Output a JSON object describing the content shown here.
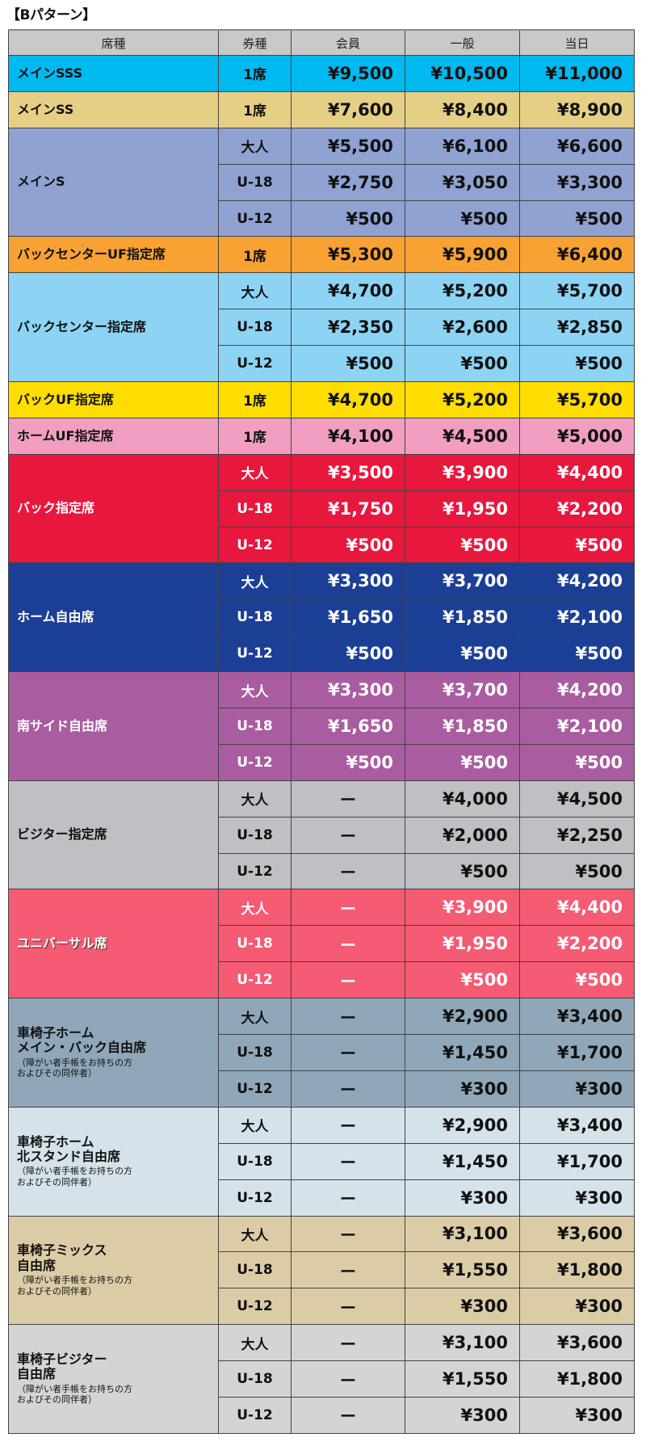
{
  "title": "【Bパターン】",
  "headers": [
    "席種",
    "券種",
    "会員",
    "一般",
    "当日"
  ],
  "groups": [
    {
      "seat": "メインSSS",
      "color": "#00b9ef",
      "text": "#111111",
      "rows": [
        [
          "1席",
          "¥9,500",
          "¥10,500",
          "¥11,000"
        ]
      ]
    },
    {
      "seat": "メインSS",
      "color": "#e5cf84",
      "text": "#111111",
      "rows": [
        [
          "1席",
          "¥7,600",
          "¥8,400",
          "¥8,900"
        ]
      ]
    },
    {
      "seat": "メインS",
      "color": "#8fa2d2",
      "text": "#111111",
      "rows": [
        [
          "大人",
          "¥5,500",
          "¥6,100",
          "¥6,600"
        ],
        [
          "U-18",
          "¥2,750",
          "¥3,050",
          "¥3,300"
        ],
        [
          "U-12",
          "¥500",
          "¥500",
          "¥500"
        ]
      ]
    },
    {
      "seat": "バックセンターUF指定席",
      "color": "#f7a233",
      "text": "#111111",
      "rows": [
        [
          "1席",
          "¥5,300",
          "¥5,900",
          "¥6,400"
        ]
      ]
    },
    {
      "seat": "バックセンター指定席",
      "color": "#8dd4f4",
      "text": "#111111",
      "rows": [
        [
          "大人",
          "¥4,700",
          "¥5,200",
          "¥5,700"
        ],
        [
          "U-18",
          "¥2,350",
          "¥2,600",
          "¥2,850"
        ],
        [
          "U-12",
          "¥500",
          "¥500",
          "¥500"
        ]
      ]
    },
    {
      "seat": "バックUF指定席",
      "color": "#ffdd00",
      "text": "#111111",
      "rows": [
        [
          "1席",
          "¥4,700",
          "¥5,200",
          "¥5,700"
        ]
      ]
    },
    {
      "seat": "ホームUF指定席",
      "color": "#f19ec2",
      "text": "#111111",
      "rows": [
        [
          "1席",
          "¥4,100",
          "¥4,500",
          "¥5,000"
        ]
      ]
    },
    {
      "seat": "バック指定席",
      "color": "#e8173d",
      "text": "#ffffff",
      "rows": [
        [
          "大人",
          "¥3,500",
          "¥3,900",
          "¥4,400"
        ],
        [
          "U-18",
          "¥1,750",
          "¥1,950",
          "¥2,200"
        ],
        [
          "U-12",
          "¥500",
          "¥500",
          "¥500"
        ]
      ]
    },
    {
      "seat": "ホーム自由席",
      "color": "#1c3f96",
      "text": "#ffffff",
      "rows": [
        [
          "大人",
          "¥3,300",
          "¥3,700",
          "¥4,200"
        ],
        [
          "U-18",
          "¥1,650",
          "¥1,850",
          "¥2,100"
        ],
        [
          "U-12",
          "¥500",
          "¥500",
          "¥500"
        ]
      ]
    },
    {
      "seat": "南サイド自由席",
      "color": "#a95da0",
      "text": "#ffffff",
      "rows": [
        [
          "大人",
          "¥3,300",
          "¥3,700",
          "¥4,200"
        ],
        [
          "U-18",
          "¥1,650",
          "¥1,850",
          "¥2,100"
        ],
        [
          "U-12",
          "¥500",
          "¥500",
          "¥500"
        ]
      ]
    },
    {
      "seat": "ビジター指定席",
      "color": "#bfc0c4",
      "text": "#111111",
      "rows": [
        [
          "大人",
          "ー",
          "¥4,000",
          "¥4,500"
        ],
        [
          "U-18",
          "ー",
          "¥2,000",
          "¥2,250"
        ],
        [
          "U-12",
          "ー",
          "¥500",
          "¥500"
        ]
      ]
    },
    {
      "seat": "ユニバーサル席",
      "color": "#f55b72",
      "text": "#ffffff",
      "white_cells": true,
      "shadow": true,
      "rows": [
        [
          "大人",
          "ー",
          "¥3,900",
          "¥4,400"
        ],
        [
          "U-18",
          "ー",
          "¥1,950",
          "¥2,200"
        ],
        [
          "U-12",
          "ー",
          "¥500",
          "¥500"
        ]
      ]
    },
    {
      "seat": "車椅子ホーム\nメイン・バック自由席",
      "note": "（障がい者手帳をお持ちの方\nおよびその同伴者）",
      "color": "#8fa7b8",
      "text": "#111111",
      "white_cells": true,
      "rows": [
        [
          "大人",
          "ー",
          "¥2,900",
          "¥3,400"
        ],
        [
          "U-18",
          "ー",
          "¥1,450",
          "¥1,700"
        ],
        [
          "U-12",
          "ー",
          "¥300",
          "¥300"
        ]
      ]
    },
    {
      "seat": "車椅子ホーム\n北スタンド自由席",
      "note": "（障がい者手帳をお持ちの方\nおよびその同伴者）",
      "color": "#d5e2ea",
      "text": "#111111",
      "white_cells": true,
      "rows": [
        [
          "大人",
          "ー",
          "¥2,900",
          "¥3,400"
        ],
        [
          "U-18",
          "ー",
          "¥1,450",
          "¥1,700"
        ],
        [
          "U-12",
          "ー",
          "¥300",
          "¥300"
        ]
      ]
    },
    {
      "seat": "車椅子ミックス\n自由席",
      "note": "（障がい者手帳をお持ちの方\nおよびその同伴者）",
      "color": "#dccca6",
      "text": "#111111",
      "white_cells": true,
      "rows": [
        [
          "大人",
          "ー",
          "¥3,100",
          "¥3,600"
        ],
        [
          "U-18",
          "ー",
          "¥1,550",
          "¥1,800"
        ],
        [
          "U-12",
          "ー",
          "¥300",
          "¥300"
        ]
      ]
    },
    {
      "seat": "車椅子ビジター\n自由席",
      "note": "（障がい者手帳をお持ちの方\nおよびその同伴者）",
      "color": "#d4d4d6",
      "text": "#111111",
      "white_cells": true,
      "rows": [
        [
          "大人",
          "ー",
          "¥3,100",
          "¥3,600"
        ],
        [
          "U-18",
          "ー",
          "¥1,550",
          "¥1,800"
        ],
        [
          "U-12",
          "ー",
          "¥300",
          "¥300"
        ]
      ]
    }
  ]
}
